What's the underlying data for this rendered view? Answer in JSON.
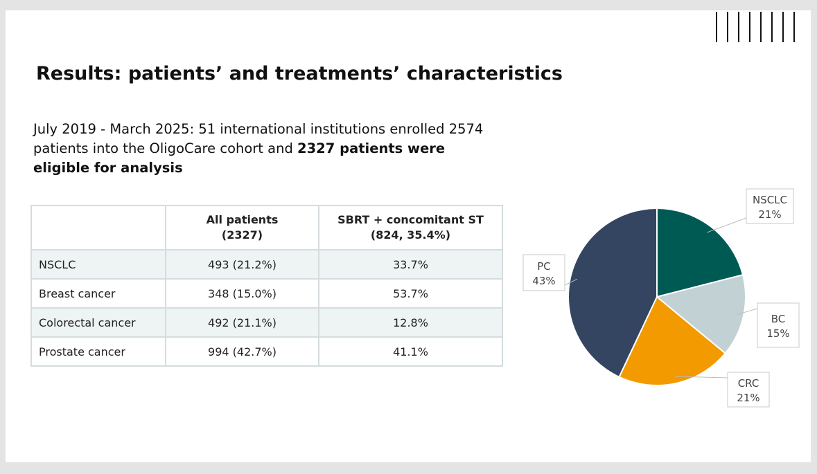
{
  "slide": {
    "title": "Results: patients’ and treatments’ characteristics",
    "intro": {
      "text": "July 2019 - March 2025: 51 international institutions enrolled 2574 patients into the OligoCare cohort and",
      "bold": "2327 patients were eligible for analysis"
    },
    "table": {
      "header": [
        [
          "All patients",
          "(2327)"
        ],
        [
          "SBRT + concomitant ST",
          "(824, 35.4%)"
        ]
      ],
      "rows": [
        [
          "NSCLC",
          "493 (21.2%)",
          "33.7%"
        ],
        [
          "Breast cancer",
          "348 (15.0%)",
          "53.7%"
        ],
        [
          "Colorectal cancer",
          "492 (21.1%)",
          "12.8%"
        ],
        [
          "Prostate cancer",
          "994 (42.7%)",
          "41.1%"
        ]
      ]
    }
  },
  "chart_data": {
    "type": "pie",
    "categories": [
      "NSCLC",
      "BC",
      "CRC",
      "PC"
    ],
    "values": [
      21,
      15,
      21,
      43
    ],
    "value_labels": [
      "21%",
      "15%",
      "21%",
      "43%"
    ],
    "colors": [
      "#005a54",
      "#c2d1d3",
      "#f29a00",
      "#334561"
    ]
  }
}
